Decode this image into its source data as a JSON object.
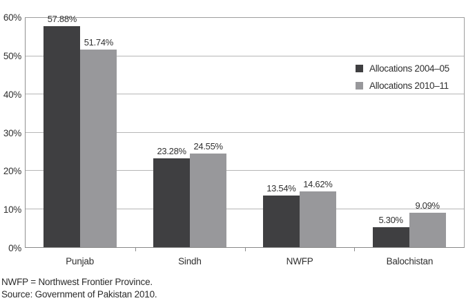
{
  "chart_data": {
    "type": "bar",
    "categories": [
      "Punjab",
      "Sindh",
      "NWFP",
      "Balochistan"
    ],
    "series": [
      {
        "name": "Allocations 2004–05",
        "color": "#3f3f41",
        "values": [
          57.88,
          23.28,
          13.54,
          5.3
        ],
        "labels": [
          "57.88%",
          "23.28%",
          "13.54%",
          "5.30%"
        ]
      },
      {
        "name": "Allocations 2010–11",
        "color": "#98989b",
        "values": [
          51.74,
          24.55,
          14.62,
          9.09
        ],
        "labels": [
          "51.74%",
          "24.55%",
          "14.62%",
          "9.09%"
        ]
      }
    ],
    "title": "",
    "xlabel": "",
    "ylabel": "",
    "ylim": [
      0,
      60
    ],
    "ytick_step": 10,
    "ytick_labels": [
      "0%",
      "10%",
      "20%",
      "30%",
      "40%",
      "50%",
      "60%"
    ],
    "grid": true,
    "legend_position": "inside-top-right",
    "gridline_color": "#b5b5b5"
  },
  "footnotes": {
    "line1": "NWFP = Northwest Frontier Province.",
    "line2": "Source: Government of Pakistan 2010."
  }
}
